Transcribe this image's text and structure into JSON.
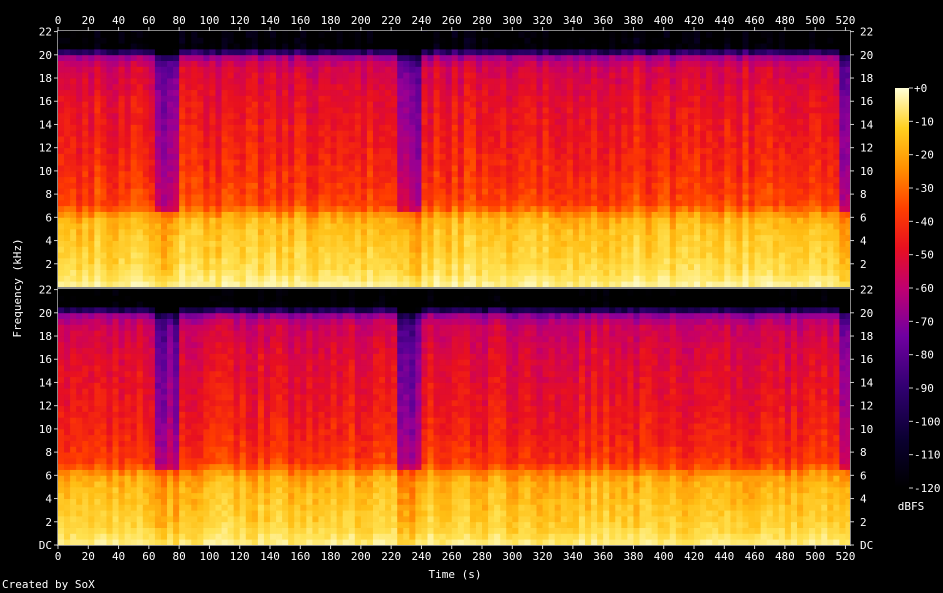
{
  "chart_data": {
    "type": "heatmap",
    "subtype": "spectrogram",
    "xlabel": "Time (s)",
    "ylabel": "Frequency (kHz)",
    "x_ticks": [
      0,
      20,
      40,
      60,
      80,
      100,
      120,
      140,
      160,
      180,
      200,
      220,
      240,
      260,
      280,
      300,
      320,
      340,
      360,
      380,
      400,
      420,
      440,
      460,
      480,
      500,
      520
    ],
    "xlim": [
      0,
      523
    ],
    "channels": 2,
    "y_ticks_top": [
      "2",
      "4",
      "6",
      "8",
      "10",
      "12",
      "14",
      "16",
      "18",
      "20",
      "22"
    ],
    "y_ticks_bottom": [
      "DC",
      "2",
      "4",
      "6",
      "8",
      "10",
      "12",
      "14",
      "16",
      "18",
      "20",
      "22"
    ],
    "ylim_khz": [
      0,
      22.05
    ],
    "colorbar": {
      "label": "dBFS",
      "ticks": [
        "+0",
        "-10",
        "-20",
        "-30",
        "-40",
        "-50",
        "-60",
        "-70",
        "-80",
        "-90",
        "-100",
        "-110",
        "-120"
      ],
      "range": [
        -120,
        0
      ]
    },
    "legend_placement": "right",
    "spectral_profile_khz_dbfs": [
      [
        0,
        -10
      ],
      [
        1,
        -18
      ],
      [
        2,
        -22
      ],
      [
        3,
        -24
      ],
      [
        4,
        -26
      ],
      [
        5,
        -28
      ],
      [
        6,
        -32
      ],
      [
        7,
        -48
      ],
      [
        9,
        -52
      ],
      [
        12,
        -56
      ],
      [
        16,
        -60
      ],
      [
        19,
        -66
      ],
      [
        20,
        -80
      ],
      [
        20.5,
        -120
      ],
      [
        22,
        -120
      ]
    ],
    "low_energy_segments_s": [
      [
        63,
        78
      ],
      [
        224,
        238
      ],
      [
        516,
        523
      ]
    ]
  },
  "credit": "Created by SoX"
}
